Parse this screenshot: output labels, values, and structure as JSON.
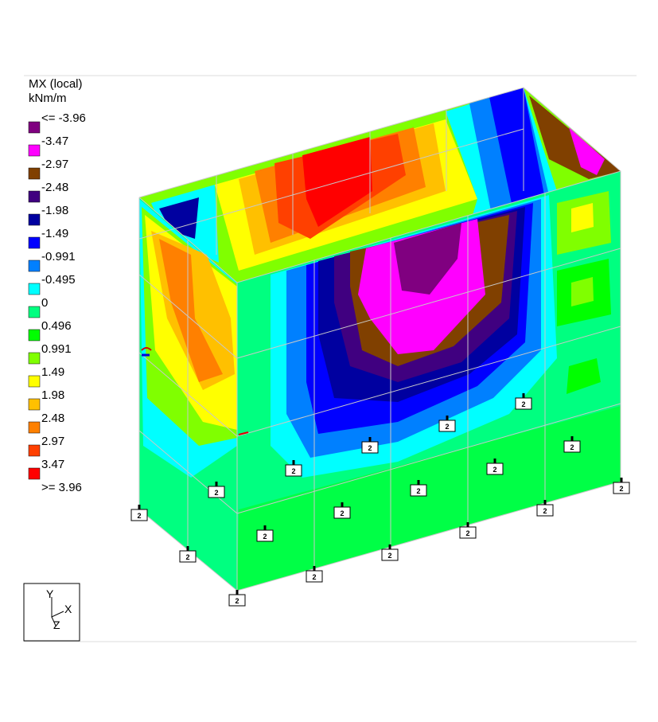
{
  "legend": {
    "title": "MX (local)",
    "unit": "kNm/m",
    "labels": [
      "<= -3.96",
      "-3.47",
      "-2.97",
      "-2.48",
      "-1.98",
      "-1.49",
      "-0.991",
      "-0.495",
      "0",
      "0.496",
      "0.991",
      "1.49",
      "1.98",
      "2.48",
      "2.97",
      "3.47",
      ">= 3.96"
    ],
    "colors": [
      "#800080",
      "#ff00ff",
      "#804000",
      "#400080",
      "#0000a0",
      "#0000ff",
      "#0080ff",
      "#00ffff",
      "#00ff80",
      "#00ff00",
      "#80ff00",
      "#ffff00",
      "#ffc000",
      "#ff8000",
      "#ff4000",
      "#ff0000"
    ]
  },
  "supports": [
    "2",
    "2",
    "2",
    "2",
    "2",
    "2",
    "2",
    "2",
    "2",
    "2",
    "2",
    "2",
    "2",
    "2",
    "2",
    "2",
    "2",
    "2"
  ],
  "axes": {
    "y": "Y",
    "x": "X",
    "z": "Z"
  }
}
